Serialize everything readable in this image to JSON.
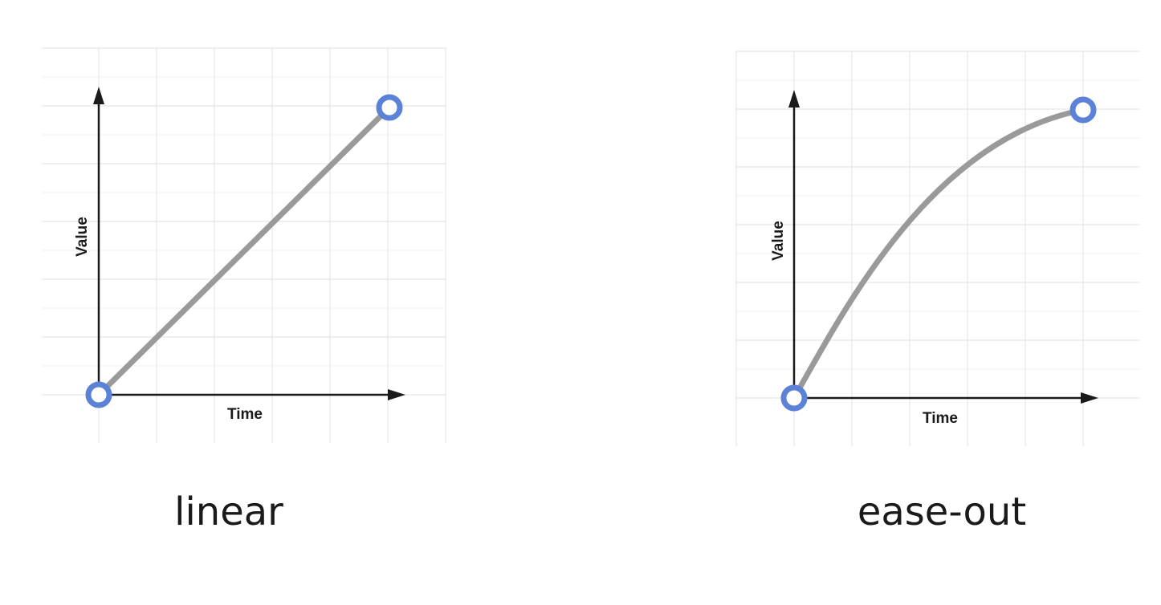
{
  "colors": {
    "grid": "#e6e6e6",
    "axis": "#1a1a1a",
    "curve": "#9a9a9a",
    "endpoint_stroke": "#5b82d6",
    "endpoint_fill": "#ffffff"
  },
  "panels": [
    {
      "id": "linear",
      "label": "linear",
      "x_axis_label": "Time",
      "y_axis_label": "Value",
      "easing": "linear"
    },
    {
      "id": "easeout",
      "label": "ease-out",
      "x_axis_label": "Time",
      "y_axis_label": "Value",
      "easing": "ease-out"
    }
  ]
}
